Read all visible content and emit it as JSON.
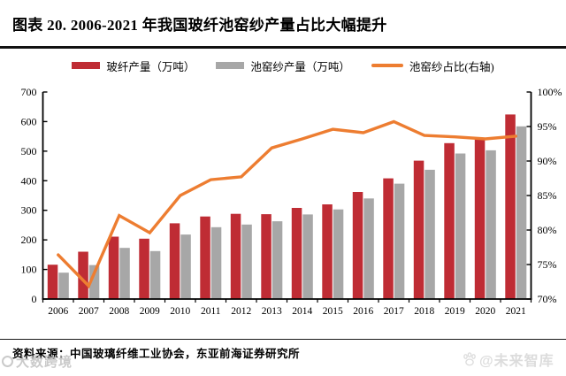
{
  "header": {
    "title": "图表 20. 2006-2021 年我国玻纤池窑纱产量占比大幅提升"
  },
  "footer": {
    "source": "资料来源：中国玻璃纤维工业协会，东亚前海证券研究所"
  },
  "watermarks": {
    "bottom_left": "大数跨境",
    "bottom_right": "@未来智库"
  },
  "colors": {
    "bar_red": "#bf2c34",
    "bar_gray": "#a7a7a7",
    "line_orange": "#ed7d31",
    "rule": "#111111"
  },
  "chart_data": {
    "type": "bar",
    "subtype": "grouped-bars-with-line",
    "title": "2006-2021 年我国玻纤池窑纱产量占比",
    "categories": [
      "2006",
      "2007",
      "2008",
      "2009",
      "2010",
      "2011",
      "2012",
      "2013",
      "2014",
      "2015",
      "2016",
      "2017",
      "2018",
      "2019",
      "2020",
      "2021"
    ],
    "series": [
      {
        "name": "玻纤产量（万吨）",
        "type": "bar",
        "axis": "left",
        "color": "#bf2c34",
        "values": [
          116,
          160,
          211,
          204,
          256,
          279,
          288,
          287,
          308,
          320,
          362,
          408,
          468,
          527,
          541,
          624
        ]
      },
      {
        "name": "池窑纱产量（万吨）",
        "type": "bar",
        "axis": "left",
        "color": "#a7a7a7",
        "values": [
          89,
          115,
          173,
          162,
          218,
          243,
          252,
          263,
          286,
          303,
          340,
          390,
          437,
          492,
          503,
          584
        ]
      },
      {
        "name": "池窑纱占比(右轴)",
        "type": "line",
        "axis": "right",
        "color": "#ed7d31",
        "unit": "%",
        "values": [
          76.4,
          71.9,
          82.1,
          79.6,
          85.0,
          87.3,
          87.7,
          91.9,
          93.2,
          94.6,
          94.1,
          95.7,
          93.7,
          93.5,
          93.2,
          93.6
        ]
      }
    ],
    "left_axis": {
      "min": 0,
      "max": 700,
      "step": 100,
      "tick_labels": [
        "0",
        "100",
        "200",
        "300",
        "400",
        "500",
        "600",
        "700"
      ]
    },
    "right_axis": {
      "min": 70,
      "max": 100,
      "step": 5,
      "tick_labels": [
        "70%",
        "75%",
        "80%",
        "85%",
        "90%",
        "95%",
        "100%"
      ]
    },
    "grid": false,
    "legend_position": "top-center"
  }
}
